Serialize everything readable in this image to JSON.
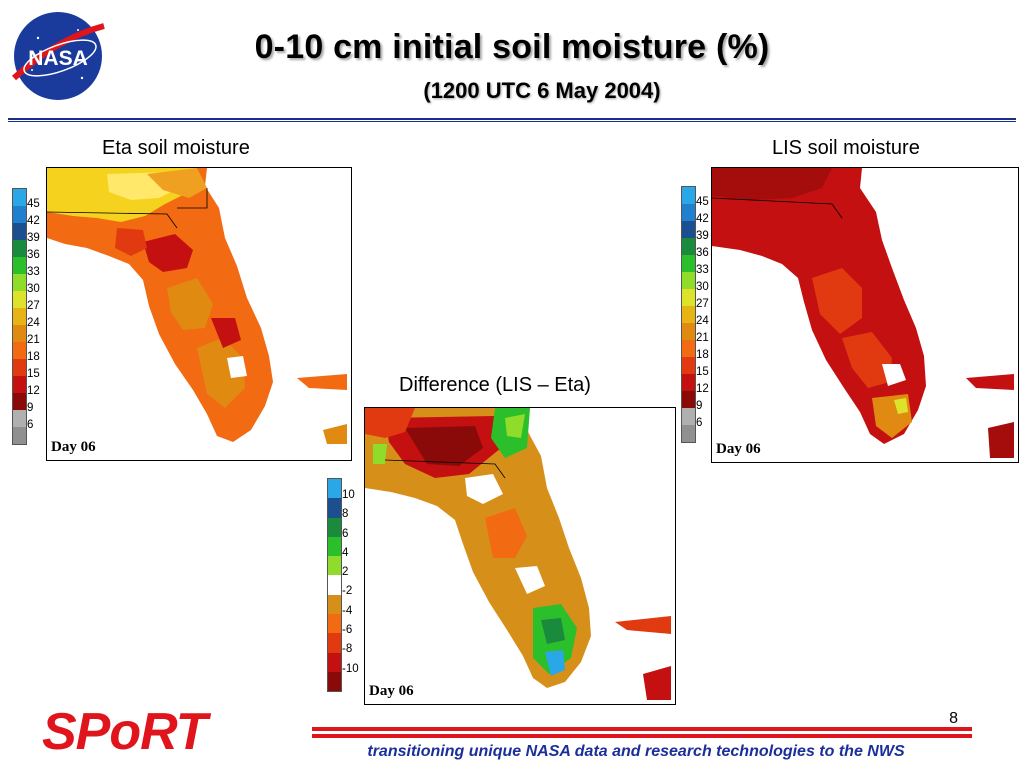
{
  "title": "0-10 cm initial soil moisture (%)",
  "subtitle": "(1200 UTC 6 May 2004)",
  "logo_text": "NASA",
  "panels": {
    "eta": {
      "label": "Eta soil moisture",
      "day": "Day 06",
      "colorbar_ticks": [
        "45",
        "42",
        "39",
        "36",
        "33",
        "30",
        "27",
        "24",
        "21",
        "18",
        "15",
        "12",
        "9",
        "6"
      ],
      "colorbar_colors": [
        "#2aa7e6",
        "#1e80cf",
        "#1b4f8f",
        "#1a8a3c",
        "#2bbf2b",
        "#8fdc2a",
        "#dde22a",
        "#e6b414",
        "#e08a12",
        "#f26a12",
        "#e23a10",
        "#c41010",
        "#8a0a0a",
        "#b0b0b0",
        "#909090"
      ]
    },
    "lis": {
      "label": "LIS soil moisture",
      "day": "Day 06",
      "colorbar_ticks": [
        "45",
        "42",
        "39",
        "36",
        "33",
        "30",
        "27",
        "24",
        "21",
        "18",
        "15",
        "12",
        "9",
        "6"
      ],
      "colorbar_colors": [
        "#2aa7e6",
        "#1e80cf",
        "#1b4f8f",
        "#1a8a3c",
        "#2bbf2b",
        "#8fdc2a",
        "#dde22a",
        "#e6b414",
        "#e08a12",
        "#f26a12",
        "#e23a10",
        "#c41010",
        "#8a0a0a",
        "#b0b0b0",
        "#909090"
      ]
    },
    "diff": {
      "label": "Difference (LIS – Eta)",
      "day": "Day 06",
      "colorbar_ticks": [
        "10",
        "8",
        "6",
        "4",
        "2",
        "-2",
        "-4",
        "-6",
        "-8",
        "-10"
      ],
      "colorbar_colors": [
        "#2aa7e6",
        "#1b4f8f",
        "#1a8a3c",
        "#2bbf2b",
        "#8fdc2a",
        "#ffffff",
        "#d6901a",
        "#f26a12",
        "#e23a10",
        "#c41010",
        "#8a0a0a"
      ]
    }
  },
  "footer": {
    "brand": "SPoRT",
    "tagline": "transitioning unique NASA data and research technologies to the NWS",
    "page_number": "8"
  }
}
